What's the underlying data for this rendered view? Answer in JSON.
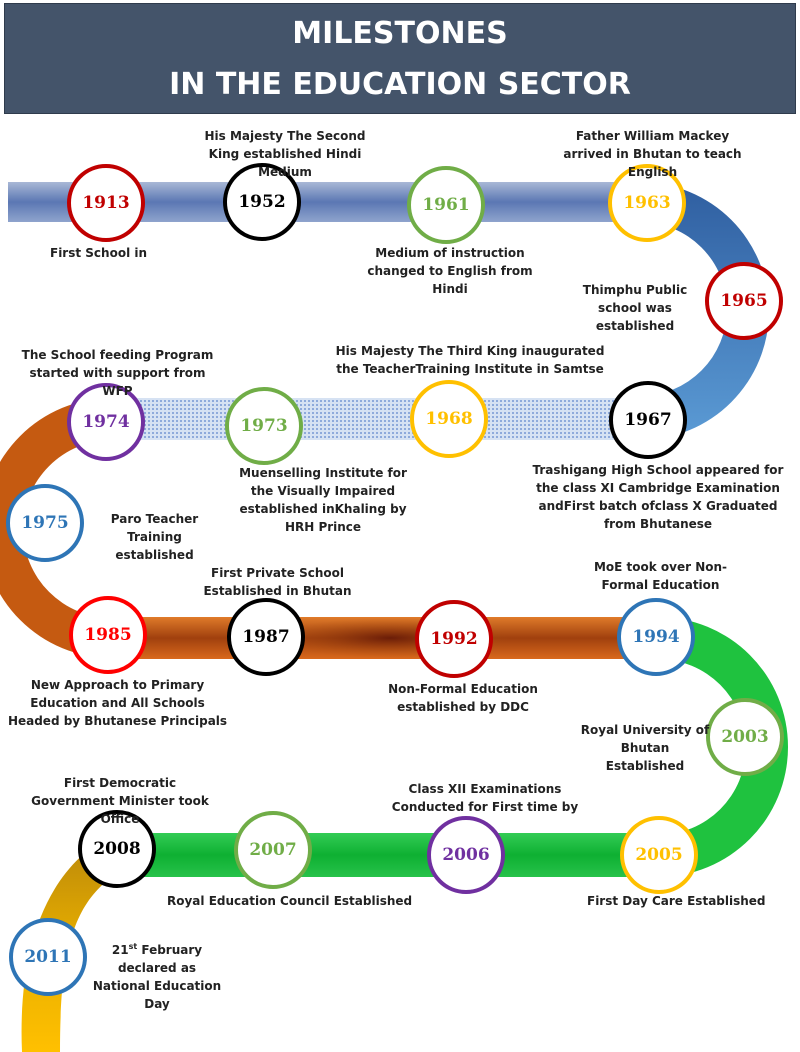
{
  "title": {
    "line1": "MILESTONES",
    "line2": "IN THE EDUCATION SECTOR"
  },
  "milestones": [
    {
      "year": "1913",
      "color": "#c00000",
      "text": "First School in"
    },
    {
      "year": "1952",
      "color": "#000000",
      "text": "His Majesty The Second King established Hindi Medium"
    },
    {
      "year": "1961",
      "color": "#70ad47",
      "text": "Medium of instruction changed to English from Hindi"
    },
    {
      "year": "1963",
      "color": "#ffc000",
      "text": "Father William Mackey arrived in Bhutan to teach English"
    },
    {
      "year": "1965",
      "color": "#c00000",
      "text": "Thimphu Public school was established"
    },
    {
      "year": "1967",
      "color": "#000000",
      "text": "Trashigang High School appeared for the class XI Cambridge Examination andFirst batch ofclass X Graduated from Bhutanese"
    },
    {
      "year": "1968",
      "color": "#ffc000",
      "text": "His Majesty The Third King inaugurated the TeacherTraining Institute in Samtse"
    },
    {
      "year": "1973",
      "color": "#70ad47",
      "text": "Muenselling Institute for the Visually Impaired established inKhaling by HRH Prince"
    },
    {
      "year": "1974",
      "color": "#7030a0",
      "text": "The School feeding Program started with support from WFP"
    },
    {
      "year": "1975",
      "color": "#2e75b6",
      "text": "Paro Teacher Training established"
    },
    {
      "year": "1985",
      "color": "#ff0000",
      "text": "New Approach to Primary Education and All Schools Headed by Bhutanese Principals"
    },
    {
      "year": "1987",
      "color": "#000000",
      "text": "First Private School Established in Bhutan"
    },
    {
      "year": "1992",
      "color": "#c00000",
      "text": "Non-Formal Education established by DDC"
    },
    {
      "year": "1994",
      "color": "#2e75b6",
      "text": "MoE took over Non-Formal Education"
    },
    {
      "year": "2003",
      "color": "#70ad47",
      "text": "Royal University of Bhutan Established"
    },
    {
      "year": "2005",
      "color": "#ffc000",
      "text": "First Day Care Established"
    },
    {
      "year": "2006",
      "color": "#7030a0",
      "text": "Class XII Examinations Conducted for First time by"
    },
    {
      "year": "2007",
      "color": "#70ad47",
      "text": "Royal Education Council Established"
    },
    {
      "year": "2008",
      "color": "#000000",
      "text": "First Democratic Government Minister took Office"
    },
    {
      "year": "2011",
      "color": "#2e75b6",
      "text": "21st February declared as National Education Day",
      "day": "21",
      "suffix": "st",
      "rest": " February"
    }
  ]
}
